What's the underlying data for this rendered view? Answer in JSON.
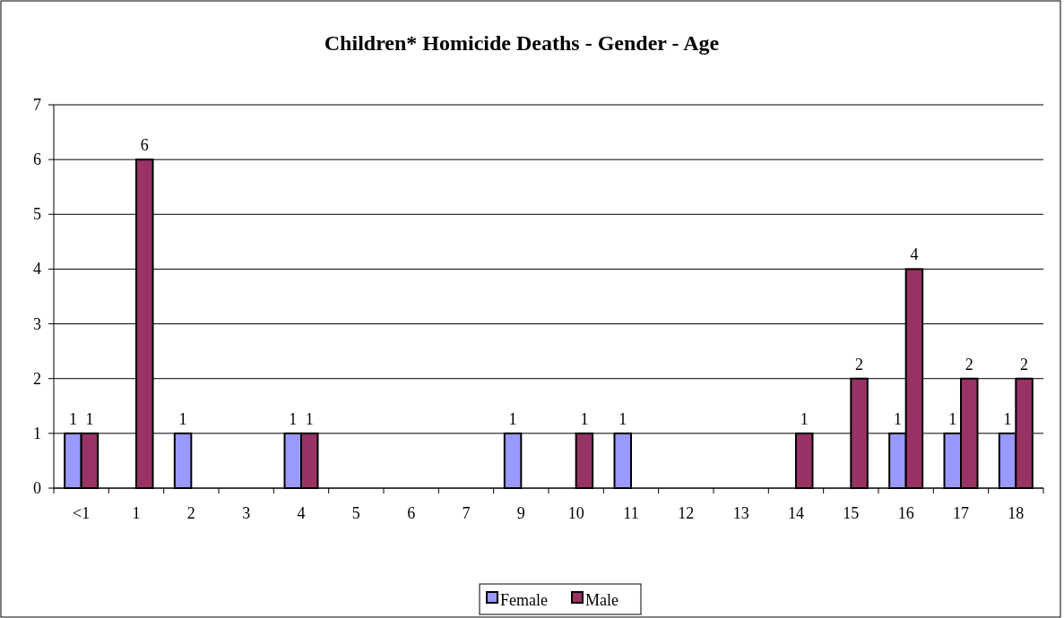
{
  "chart_data": {
    "type": "bar",
    "title": "Children* Homicide Deaths - Gender - Age",
    "categories": [
      "<1",
      "1",
      "2",
      "3",
      "4",
      "5",
      "6",
      "7",
      "9",
      "10",
      "11",
      "12",
      "13",
      "14",
      "15",
      "16",
      "17",
      "18"
    ],
    "series": [
      {
        "name": "Female",
        "color": "#9999ff",
        "values": [
          1,
          null,
          1,
          null,
          1,
          null,
          null,
          null,
          1,
          null,
          1,
          null,
          null,
          null,
          null,
          1,
          1,
          1
        ]
      },
      {
        "name": "Male",
        "color": "#993366",
        "values": [
          1,
          6,
          null,
          null,
          1,
          null,
          null,
          null,
          null,
          1,
          null,
          null,
          null,
          1,
          2,
          4,
          2,
          2
        ]
      }
    ],
    "ylim": [
      0,
      7
    ],
    "yticks": [
      0,
      1,
      2,
      3,
      4,
      5,
      6,
      7
    ],
    "grid": "y",
    "data_labels": true,
    "legend": "bottom"
  }
}
